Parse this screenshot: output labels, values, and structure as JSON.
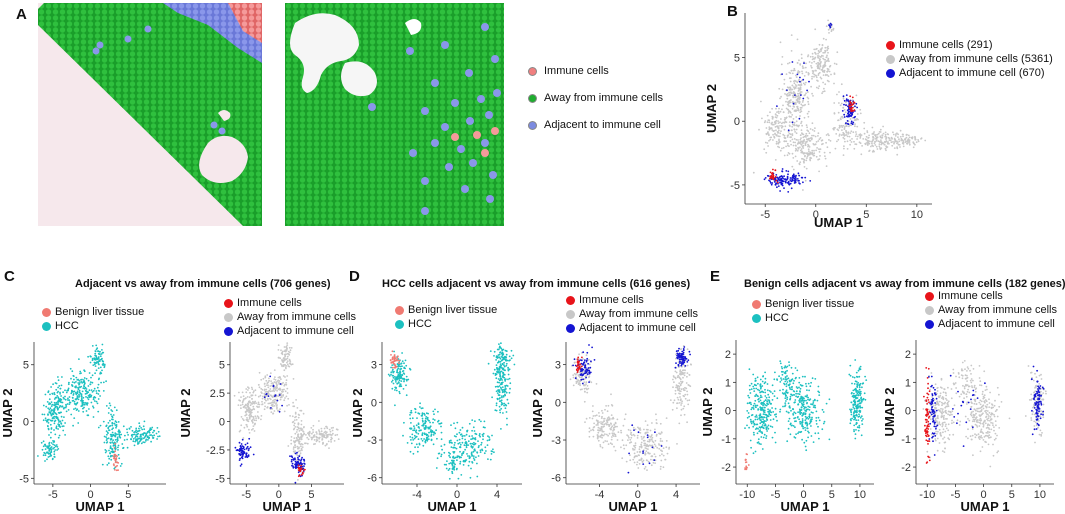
{
  "figure": {
    "panels": {
      "A": {
        "letter": "A",
        "legend": [
          {
            "label": "Immune cells",
            "color": "#f07f7f"
          },
          {
            "label": "Away from immune cells",
            "color": "#1fad2f"
          },
          {
            "label": "Adjacent to immune cell",
            "color": "#7c8be0"
          }
        ]
      },
      "B": {
        "letter": "B",
        "legend": [
          {
            "label": "Immune cells (291)",
            "color": "#e8141a"
          },
          {
            "label": "Away from immune cells (5361)",
            "color": "#c8c8c8"
          },
          {
            "label": "Adjacent to immune cell (670)",
            "color": "#1414d2"
          }
        ]
      },
      "C": {
        "letter": "C",
        "title": "Adjacent vs away from immune cells (706 genes)",
        "legend_left": [
          {
            "label": "Benign liver tissue",
            "color": "#f07a72"
          },
          {
            "label": "HCC",
            "color": "#1cc0c0"
          }
        ],
        "legend_right": [
          {
            "label": "Immune cells",
            "color": "#e8141a"
          },
          {
            "label": "Away from immune cells",
            "color": "#c8c8c8"
          },
          {
            "label": "Adjacent to immune cell",
            "color": "#1414d2"
          }
        ]
      },
      "D": {
        "letter": "D",
        "title": "HCC cells adjacent vs away from immune cells (616 genes)",
        "legend_left": [
          {
            "label": "Benign liver tissue",
            "color": "#f07a72"
          },
          {
            "label": "HCC",
            "color": "#1cc0c0"
          }
        ],
        "legend_right": [
          {
            "label": "Immune cells",
            "color": "#e8141a"
          },
          {
            "label": "Away from immune cells",
            "color": "#c8c8c8"
          },
          {
            "label": "Adjacent to immune cell",
            "color": "#1414d2"
          }
        ]
      },
      "E": {
        "letter": "E",
        "title": "Benign cells adjacent vs away from immune cells (182 genes)",
        "legend_left": [
          {
            "label": "Benign liver tissue",
            "color": "#f07a72"
          },
          {
            "label": "HCC",
            "color": "#1cc0c0"
          }
        ],
        "legend_right": [
          {
            "label": "Immune cells",
            "color": "#e8141a"
          },
          {
            "label": "Away from immune cells",
            "color": "#c8c8c8"
          },
          {
            "label": "Adjacent to immune cell",
            "color": "#1414d2"
          }
        ]
      }
    }
  },
  "chart_data": [
    {
      "id": "B",
      "type": "scatter",
      "xlabel": "UMAP 1",
      "ylabel": "UMAP 2",
      "xticks": [
        -5,
        0,
        5,
        10
      ],
      "yticks": [
        -5,
        0,
        5
      ],
      "xlim": [
        -7,
        11.5
      ],
      "ylim": [
        -6.5,
        8.5
      ]
    },
    {
      "id": "C-left",
      "type": "scatter",
      "xlabel": "UMAP 1",
      "ylabel": "UMAP 2",
      "xticks": [
        -5,
        0,
        5
      ],
      "yticks": [
        5,
        0,
        -5
      ],
      "xtick_labels": [
        "-5",
        "0",
        "5"
      ],
      "ytick_labels": [
        "5",
        "0",
        "-5"
      ],
      "xlim": [
        -7.5,
        10
      ],
      "ylim": [
        -5.5,
        7
      ]
    },
    {
      "id": "C-right",
      "type": "scatter",
      "xlabel": "UMAP 1",
      "ylabel": "UMAP 2",
      "xticks": [
        -5,
        0,
        5
      ],
      "yticks": [
        5,
        2.5,
        0,
        -2.5,
        -5
      ],
      "xtick_labels": [
        "-5",
        "0",
        "5"
      ],
      "ytick_labels": [
        "5",
        "2.5",
        "0",
        "-2.5",
        "-5"
      ],
      "xlim": [
        -7.5,
        10
      ],
      "ylim": [
        -5.5,
        7
      ]
    },
    {
      "id": "D-left",
      "type": "scatter",
      "xlabel": "UMAP 1",
      "ylabel": "UMAP 2",
      "xticks": [
        -4,
        0,
        4
      ],
      "yticks": [
        3,
        0,
        -3,
        -6
      ],
      "xtick_labels": [
        "-4",
        "0",
        "4"
      ],
      "ytick_labels": [
        "3",
        "0",
        "-3",
        "-6"
      ],
      "xlim": [
        -7.5,
        6.5
      ],
      "ylim": [
        -6.5,
        4.8
      ]
    },
    {
      "id": "D-right",
      "type": "scatter",
      "xlabel": "UMAP 1",
      "ylabel": "UMAP 2",
      "xticks": [
        -4,
        0,
        4
      ],
      "yticks": [
        3,
        0,
        -3,
        -6
      ],
      "xtick_labels": [
        "-4",
        "0",
        "4"
      ],
      "ytick_labels": [
        "3",
        "0",
        "-3",
        "-6"
      ],
      "xlim": [
        -7.5,
        6.5
      ],
      "ylim": [
        -6.5,
        4.8
      ]
    },
    {
      "id": "E-left",
      "type": "scatter",
      "xlabel": "UMAP 1",
      "ylabel": "UMAP 2",
      "xticks": [
        -10,
        -5,
        0,
        5,
        10
      ],
      "yticks": [
        2,
        1,
        0,
        -1,
        -2
      ],
      "xtick_labels": [
        "-10",
        "-5",
        "0",
        "5",
        "10"
      ],
      "ytick_labels": [
        "2",
        "1",
        "0",
        "-1",
        "-2"
      ],
      "xlim": [
        -12,
        12.5
      ],
      "ylim": [
        -2.6,
        2.5
      ]
    },
    {
      "id": "E-right",
      "type": "scatter",
      "xlabel": "UMAP 1",
      "ylabel": "UMAP 2",
      "xticks": [
        -10,
        -5,
        0,
        5,
        10
      ],
      "yticks": [
        2,
        1,
        0,
        -1,
        -2
      ],
      "xtick_labels": [
        "-10",
        "-5",
        "0",
        "5",
        "10"
      ],
      "ytick_labels": [
        "2",
        "1",
        "0",
        "-1",
        "-2"
      ],
      "xlim": [
        -12,
        12.5
      ],
      "ylim": [
        -2.6,
        2.5
      ]
    }
  ]
}
